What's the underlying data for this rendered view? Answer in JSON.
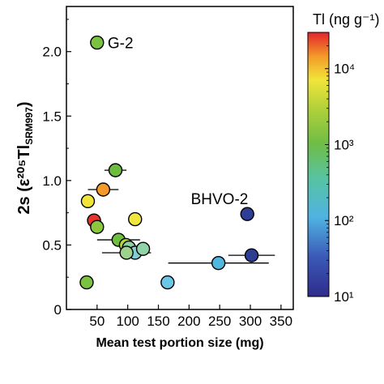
{
  "chart_data": {
    "type": "scatter",
    "xlabel": "Mean test portion size (mg)",
    "ylabel": "2s (ε²⁰⁵Tl",
    "ylabel_sub": "SRM997",
    "ylabel_close": ")",
    "xlim": [
      0,
      370
    ],
    "ylim": [
      0,
      2.35
    ],
    "xticks": [
      "50",
      "100",
      "150",
      "200",
      "250",
      "300",
      "350"
    ],
    "xtick_values": [
      50,
      100,
      150,
      200,
      250,
      300,
      350
    ],
    "yticks": [
      "0",
      "0.5",
      "1.0",
      "1.5",
      "2.0"
    ],
    "ytick_values": [
      0,
      0.5,
      1.0,
      1.5,
      2.0
    ],
    "colorbar": {
      "title": "Tl (ng g⁻¹)",
      "scale": "log",
      "range": [
        10,
        30000
      ],
      "ticks": [
        {
          "value": 10,
          "label": "10¹"
        },
        {
          "value": 100,
          "label": "10²"
        },
        {
          "value": 1000,
          "label": "10³"
        },
        {
          "value": 10000,
          "label": "10⁴"
        }
      ]
    },
    "annotations": [
      {
        "text": "G-2",
        "x": 62,
        "y": 2.07
      },
      {
        "text": "BHVO-2",
        "x": 203,
        "y": 0.86
      }
    ],
    "points": [
      {
        "x": 50,
        "y": 2.07,
        "xerr": 0,
        "color": "#7cc242"
      },
      {
        "x": 80,
        "y": 1.08,
        "xerr": 18,
        "color": "#6dbb3f"
      },
      {
        "x": 60,
        "y": 0.93,
        "xerr": 25,
        "color": "#f39a2a"
      },
      {
        "x": 35,
        "y": 0.84,
        "xerr": 0,
        "color": "#f2e53a"
      },
      {
        "x": 45,
        "y": 0.69,
        "xerr": 0,
        "color": "#e8322b"
      },
      {
        "x": 50,
        "y": 0.64,
        "xerr": 0,
        "color": "#8cc63f"
      },
      {
        "x": 85,
        "y": 0.54,
        "xerr": 35,
        "color": "#6ebf3e"
      },
      {
        "x": 97,
        "y": 0.5,
        "xerr": 15,
        "color": "#b7d43a"
      },
      {
        "x": 112,
        "y": 0.7,
        "xerr": 0,
        "color": "#efe73d"
      },
      {
        "x": 102,
        "y": 0.48,
        "xerr": 0,
        "color": "#8fd0a0"
      },
      {
        "x": 112,
        "y": 0.44,
        "xerr": 0,
        "color": "#7fcfd8"
      },
      {
        "x": 125,
        "y": 0.47,
        "xerr": 0,
        "color": "#92d2a8"
      },
      {
        "x": 98,
        "y": 0.44,
        "xerr": 40,
        "color": "#9ed08e"
      },
      {
        "x": 165,
        "y": 0.21,
        "xerr": 0,
        "color": "#6cc7e6"
      },
      {
        "x": 248,
        "y": 0.36,
        "xerr": 82,
        "color": "#50b7df"
      },
      {
        "x": 295,
        "y": 0.74,
        "xerr": 0,
        "color": "#2e3e95"
      },
      {
        "x": 302,
        "y": 0.42,
        "xerr": 38,
        "color": "#2c3e94"
      },
      {
        "x": 33,
        "y": 0.21,
        "xerr": 0,
        "color": "#7cc242"
      }
    ]
  }
}
